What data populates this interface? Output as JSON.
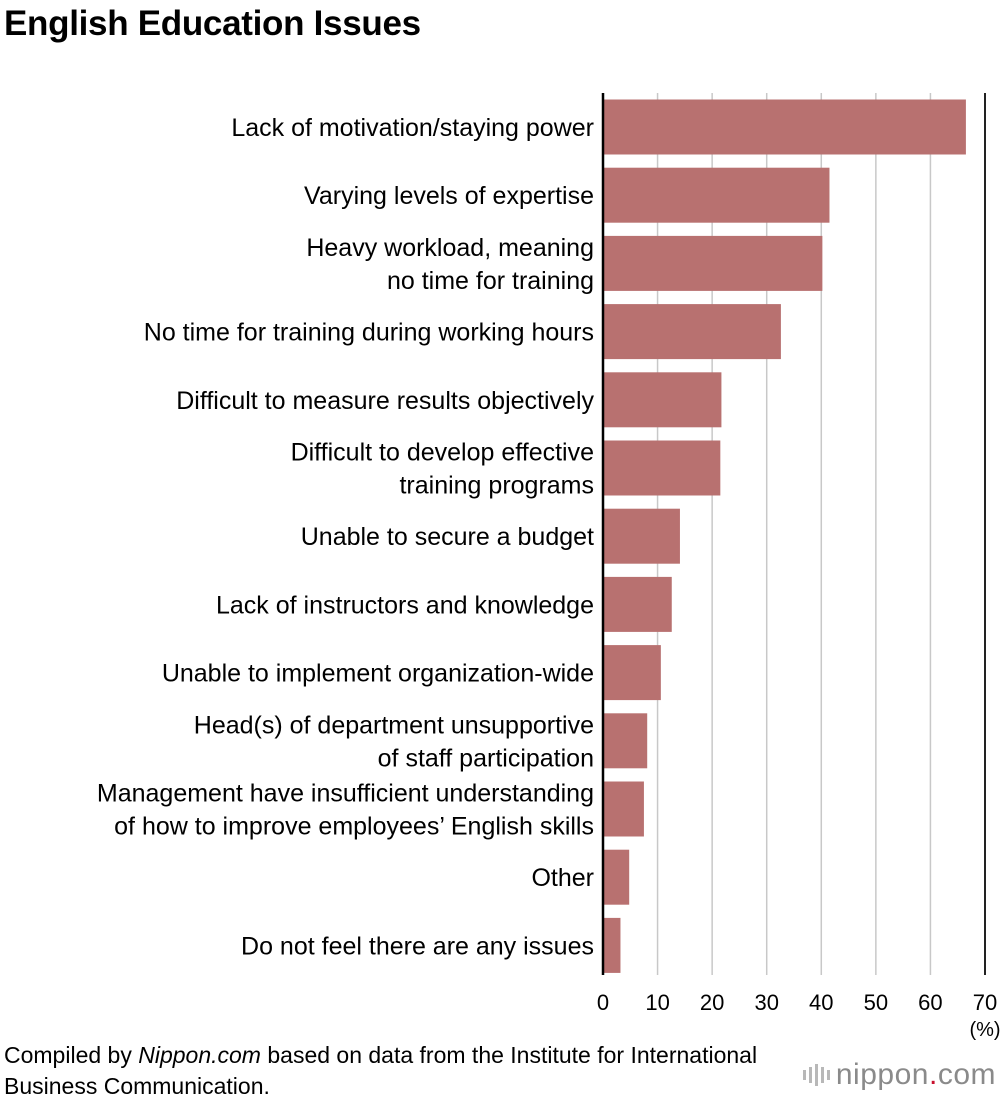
{
  "chart_data": {
    "type": "bar",
    "orientation": "horizontal",
    "title": "English Education Issues",
    "categories": [
      [
        "Lack of motivation/staying power"
      ],
      [
        "Varying levels of expertise"
      ],
      [
        "Heavy workload, meaning",
        "no time for training"
      ],
      [
        "No time for training during working hours"
      ],
      [
        "Difficult to measure results objectively"
      ],
      [
        "Difficult to develop effective",
        "training programs"
      ],
      [
        "Unable to secure a budget"
      ],
      [
        "Lack of instructors and knowledge"
      ],
      [
        "Unable to implement organization-wide"
      ],
      [
        "Head(s) of department unsupportive",
        "of staff participation"
      ],
      [
        "Management have insufficient understanding",
        "of how to improve employees’ English skills"
      ],
      [
        "Other"
      ],
      [
        "Do not feel there are any issues"
      ]
    ],
    "values": [
      66.5,
      41.5,
      40.2,
      32.6,
      21.7,
      21.5,
      14.1,
      12.6,
      10.6,
      8.1,
      7.5,
      4.8,
      3.2
    ],
    "xlim": [
      0,
      70
    ],
    "xticks": [
      "0",
      "10",
      "20",
      "30",
      "40",
      "50",
      "60",
      "70"
    ],
    "xunit": "(%)",
    "grid": "vertical",
    "bar_color": "#b87170"
  },
  "source_note": {
    "prefix": "Compiled by ",
    "italic": "Nippon.com",
    "suffix": " based on data from the Institute for International Business Communication."
  },
  "logo": {
    "name": "nippon",
    "dot": ".",
    "suffix": "com"
  }
}
